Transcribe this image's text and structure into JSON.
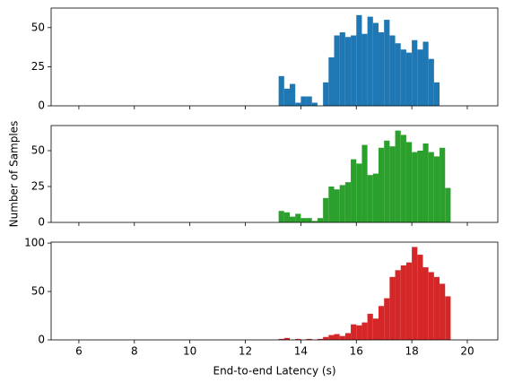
{
  "chart_data": [
    {
      "type": "histogram",
      "color": "#1f77b4",
      "bins": [
        13.2,
        13.4,
        13.6,
        13.8,
        14.0,
        14.2,
        14.4,
        14.6,
        14.8,
        15.0,
        15.2,
        15.4,
        15.6,
        15.8,
        16.0,
        16.2,
        16.4,
        16.6,
        16.8,
        17.0,
        17.2,
        17.4,
        17.6,
        17.8,
        18.0,
        18.2,
        18.4,
        18.6,
        18.8,
        19.0
      ],
      "values": [
        19,
        11,
        14,
        2,
        6,
        6,
        2,
        0,
        15,
        31,
        45,
        47,
        44,
        45,
        58,
        46,
        57,
        53,
        47,
        55,
        45,
        40,
        36,
        34,
        42,
        36,
        41,
        30,
        15
      ],
      "xlim": [
        5,
        21.1
      ],
      "ylim": [
        0,
        62.5
      ],
      "yticks": [
        0,
        25,
        50
      ]
    },
    {
      "type": "histogram",
      "color": "#2ca02c",
      "ylabel": "Number of Samples",
      "bins": [
        13.2,
        13.4,
        13.6,
        13.8,
        14.0,
        14.2,
        14.4,
        14.6,
        14.8,
        15.0,
        15.2,
        15.4,
        15.6,
        15.8,
        16.0,
        16.2,
        16.4,
        16.6,
        16.8,
        17.0,
        17.2,
        17.4,
        17.6,
        17.8,
        18.0,
        18.2,
        18.4,
        18.6,
        18.8,
        19.0,
        19.2,
        19.4
      ],
      "values": [
        8,
        7,
        4,
        6,
        3,
        3,
        1,
        3,
        17,
        25,
        23,
        26,
        28,
        44,
        41,
        54,
        33,
        34,
        52,
        57,
        53,
        64,
        61,
        56,
        49,
        50,
        55,
        49,
        46,
        52,
        24
      ],
      "xlim": [
        5,
        21.1
      ],
      "ylim": [
        0,
        67.5
      ],
      "yticks": [
        0,
        25,
        50
      ]
    },
    {
      "type": "histogram",
      "color": "#d62728",
      "xlabel": "End-to-end Latency (s)",
      "bins": [
        13.2,
        13.4,
        13.6,
        13.8,
        14.0,
        14.2,
        14.4,
        14.6,
        14.8,
        15.0,
        15.2,
        15.4,
        15.6,
        15.8,
        16.0,
        16.2,
        16.4,
        16.6,
        16.8,
        17.0,
        17.2,
        17.4,
        17.6,
        17.8,
        18.0,
        18.2,
        18.4,
        18.6,
        18.8,
        19.0,
        19.2,
        19.4,
        19.6
      ],
      "values": [
        1,
        2,
        0,
        1,
        0,
        1,
        0,
        1,
        3,
        5,
        6,
        4,
        7,
        16,
        15,
        18,
        27,
        22,
        35,
        43,
        65,
        72,
        77,
        80,
        96,
        88,
        75,
        70,
        65,
        58,
        45,
        0
      ],
      "xlim": [
        5,
        21.1
      ],
      "ylim": [
        0,
        101
      ],
      "yticks": [
        0,
        50,
        100
      ],
      "xticks": [
        6,
        8,
        10,
        12,
        14,
        16,
        18,
        20
      ]
    }
  ]
}
